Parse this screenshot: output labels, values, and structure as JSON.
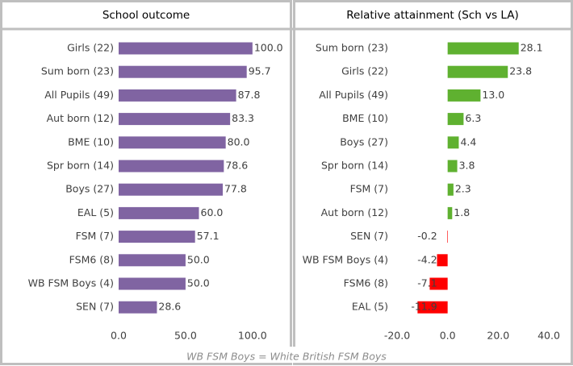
{
  "chart_data": [
    {
      "type": "bar",
      "orientation": "horizontal",
      "title": "School outcome",
      "categories": [
        "Girls (22)",
        "Sum born (23)",
        "All Pupils (49)",
        "Aut born (12)",
        "BME (10)",
        "Spr born (14)",
        "Boys (27)",
        "EAL (5)",
        "FSM (7)",
        "FSM6 (8)",
        "WB FSM Boys (4)",
        "SEN (7)"
      ],
      "values": [
        100.0,
        95.7,
        87.8,
        83.3,
        80.0,
        78.6,
        77.8,
        60.0,
        57.1,
        50.0,
        50.0,
        28.6
      ],
      "value_labels": [
        "100.0",
        "95.7",
        "87.8",
        "83.3",
        "80.0",
        "78.6",
        "77.8",
        "60.0",
        "57.1",
        "50.0",
        "50.0",
        "28.6"
      ],
      "color": "#8064a2",
      "xlim": [
        0,
        120
      ],
      "xticks": [
        {
          "value": 0,
          "label": "0.0"
        },
        {
          "value": 50,
          "label": "50.0"
        },
        {
          "value": 100,
          "label": "100.0"
        }
      ]
    },
    {
      "type": "bar",
      "orientation": "horizontal",
      "title": "Relative attainment (Sch vs LA)",
      "categories": [
        "Sum born (23)",
        "Girls (22)",
        "All Pupils (49)",
        "BME (10)",
        "Boys (27)",
        "Spr born (14)",
        "FSM (7)",
        "Aut born (12)",
        "SEN (7)",
        "WB FSM Boys (4)",
        "FSM6 (8)",
        "EAL (5)"
      ],
      "values": [
        28.1,
        23.8,
        13.0,
        6.3,
        4.4,
        3.8,
        2.3,
        1.8,
        -0.2,
        -4.2,
        -7.1,
        -11.9
      ],
      "value_labels": [
        "28.1",
        "23.8",
        "13.0",
        "6.3",
        "4.4",
        "3.8",
        "2.3",
        "1.8",
        "-0.2",
        "-4.2",
        "-7.1",
        "-11.9"
      ],
      "color": "#5fb130",
      "negative_color": "#ff0000",
      "xlim": [
        -20,
        40
      ],
      "xticks": [
        {
          "value": -20,
          "label": "-20.0"
        },
        {
          "value": 0,
          "label": "0.0"
        },
        {
          "value": 20,
          "label": "20.0"
        },
        {
          "value": 40,
          "label": "40.0"
        }
      ]
    }
  ],
  "note": "WB FSM Boys = White British FSM Boys"
}
